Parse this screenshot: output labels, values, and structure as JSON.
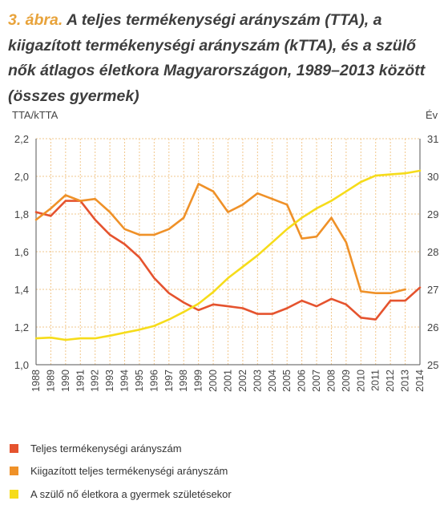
{
  "figure": {
    "number": "3. ábra.",
    "title": "A teljes termékenységi arányszám (TTA), a kiigazított termékenységi arányszám (kTTA), és a szülő nők átlagos életkora Magyarországon, 1989–2013 között (összes gyermek)"
  },
  "colors": {
    "tta": "#e5532e",
    "ktta": "#ef9128",
    "age": "#f6dc1a",
    "grid": "#f2c78c",
    "axis": "#555555"
  },
  "chart_data": {
    "type": "line",
    "title": "",
    "x_label": "",
    "y_left_label": "TTA/kTTA",
    "y_right_label": "Év",
    "x": [
      1988,
      1989,
      1990,
      1991,
      1992,
      1993,
      1994,
      1995,
      1996,
      1997,
      1998,
      1999,
      2000,
      2001,
      2002,
      2003,
      2004,
      2005,
      2006,
      2007,
      2008,
      2009,
      2010,
      2011,
      2012,
      2013,
      2014
    ],
    "y_left_range": [
      1.0,
      2.2
    ],
    "y_left_ticks": [
      "1,0",
      "1,2",
      "1,4",
      "1,6",
      "1,8",
      "2,0",
      "2,2"
    ],
    "y_right_range": [
      25,
      31
    ],
    "y_right_ticks": [
      "25",
      "26",
      "27",
      "28",
      "29",
      "30",
      "31"
    ],
    "grid": true,
    "legend_position": "bottom",
    "series": [
      {
        "name": "Teljes termékenységi arányszám",
        "axis": "left",
        "color_key": "tta",
        "values": [
          1.81,
          1.79,
          1.87,
          1.87,
          1.77,
          1.69,
          1.64,
          1.57,
          1.46,
          1.38,
          1.33,
          1.29,
          1.32,
          1.31,
          1.3,
          1.27,
          1.27,
          1.3,
          1.34,
          1.31,
          1.35,
          1.32,
          1.25,
          1.24,
          1.34,
          1.34,
          1.41
        ]
      },
      {
        "name": "Kiigazított teljes termékenységi arányszám",
        "axis": "left",
        "color_key": "ktta",
        "values": [
          1.77,
          1.83,
          1.9,
          1.87,
          1.88,
          1.81,
          1.72,
          1.69,
          1.69,
          1.72,
          1.78,
          1.96,
          1.92,
          1.81,
          1.85,
          1.91,
          1.88,
          1.85,
          1.67,
          1.68,
          1.78,
          1.65,
          1.39,
          1.38,
          1.38,
          1.4,
          null
        ]
      },
      {
        "name": "A szülő nő életkora a gyermek születésekor",
        "axis": "right",
        "color_key": "age",
        "values": [
          25.7,
          25.72,
          25.66,
          25.7,
          25.7,
          25.77,
          25.85,
          25.93,
          26.03,
          26.2,
          26.4,
          26.62,
          26.93,
          27.3,
          27.6,
          27.9,
          28.25,
          28.6,
          28.9,
          29.15,
          29.35,
          29.6,
          29.85,
          30.02,
          30.05,
          30.08,
          30.15
        ]
      }
    ]
  }
}
